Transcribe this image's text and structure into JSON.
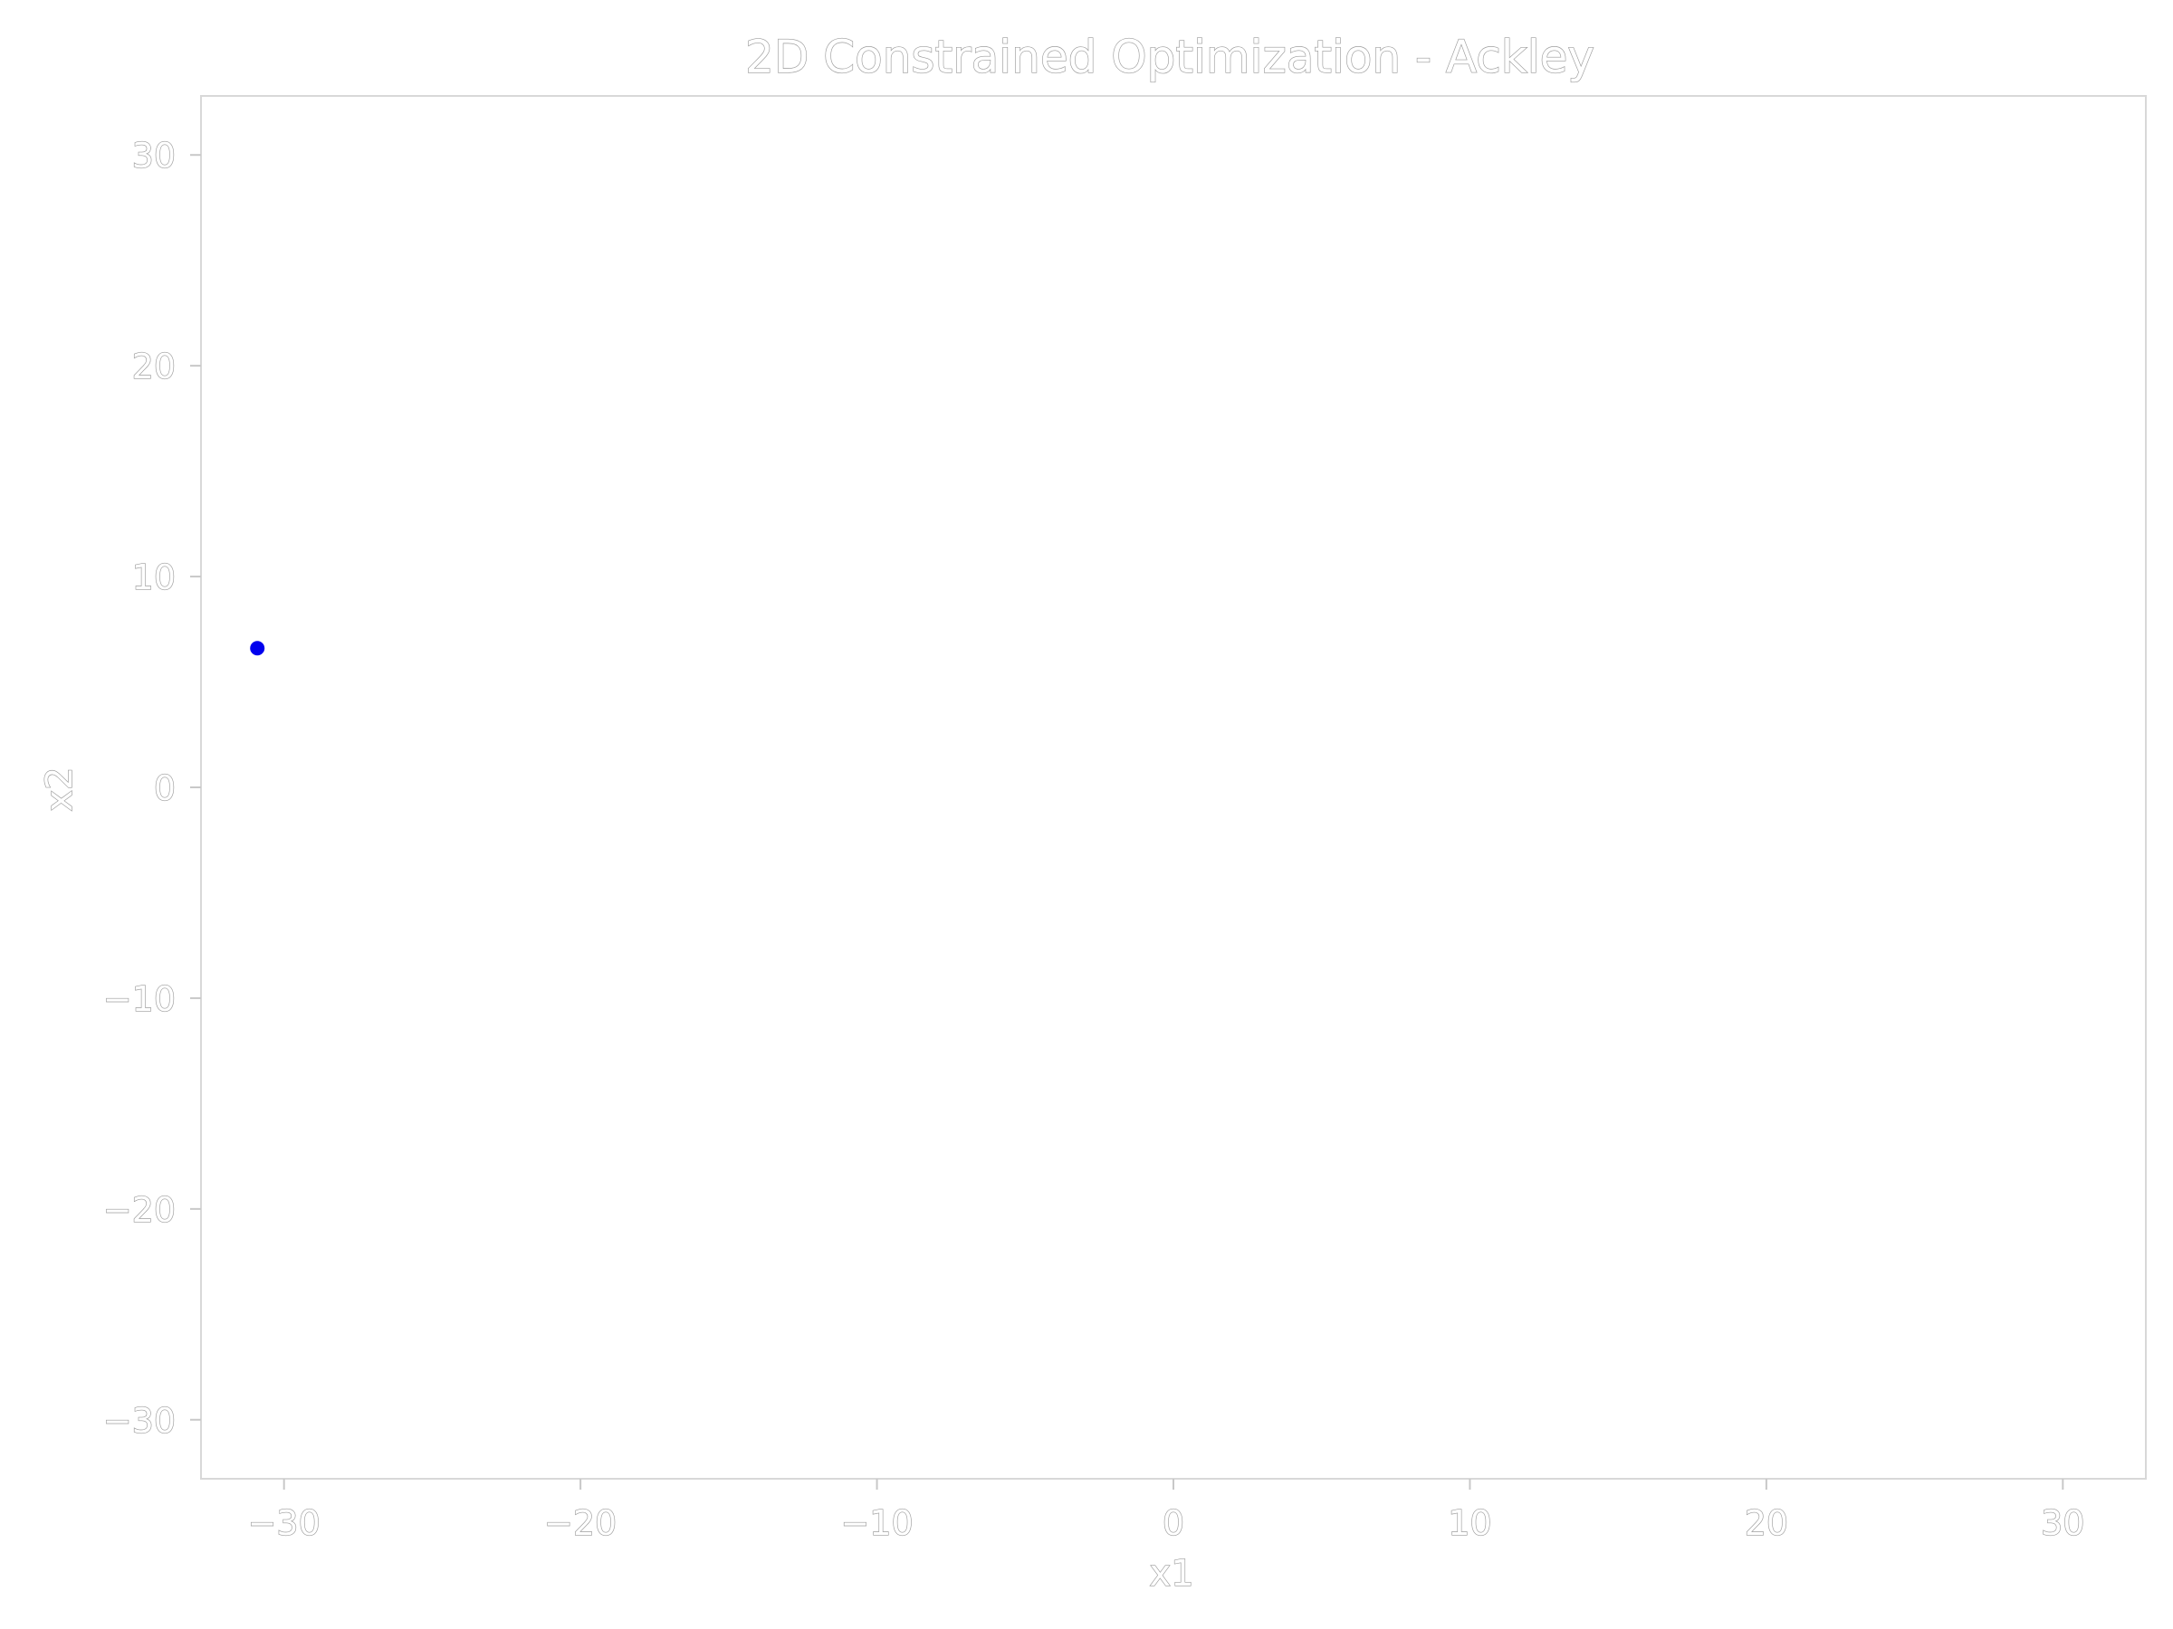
{
  "chart_data": {
    "type": "scatter",
    "title": "2D Constrained Optimization - Ackley",
    "xlabel": "x1",
    "ylabel": "x2",
    "xlim": [
      -32.8,
      32.8
    ],
    "ylim": [
      -32.8,
      32.8
    ],
    "xticks": [
      -30,
      -20,
      -10,
      0,
      10,
      20,
      30
    ],
    "yticks": [
      -30,
      -20,
      -10,
      0,
      10,
      20,
      30
    ],
    "xtick_labels": [
      "−30",
      "−20",
      "−10",
      "0",
      "10",
      "20",
      "30"
    ],
    "ytick_labels": [
      "−30",
      "−20",
      "−10",
      "0",
      "10",
      "20",
      "30"
    ],
    "grid": false,
    "series": [
      {
        "x": [
          -30.9
        ],
        "y": [
          6.6
        ],
        "color": "#0000ee"
      }
    ]
  }
}
